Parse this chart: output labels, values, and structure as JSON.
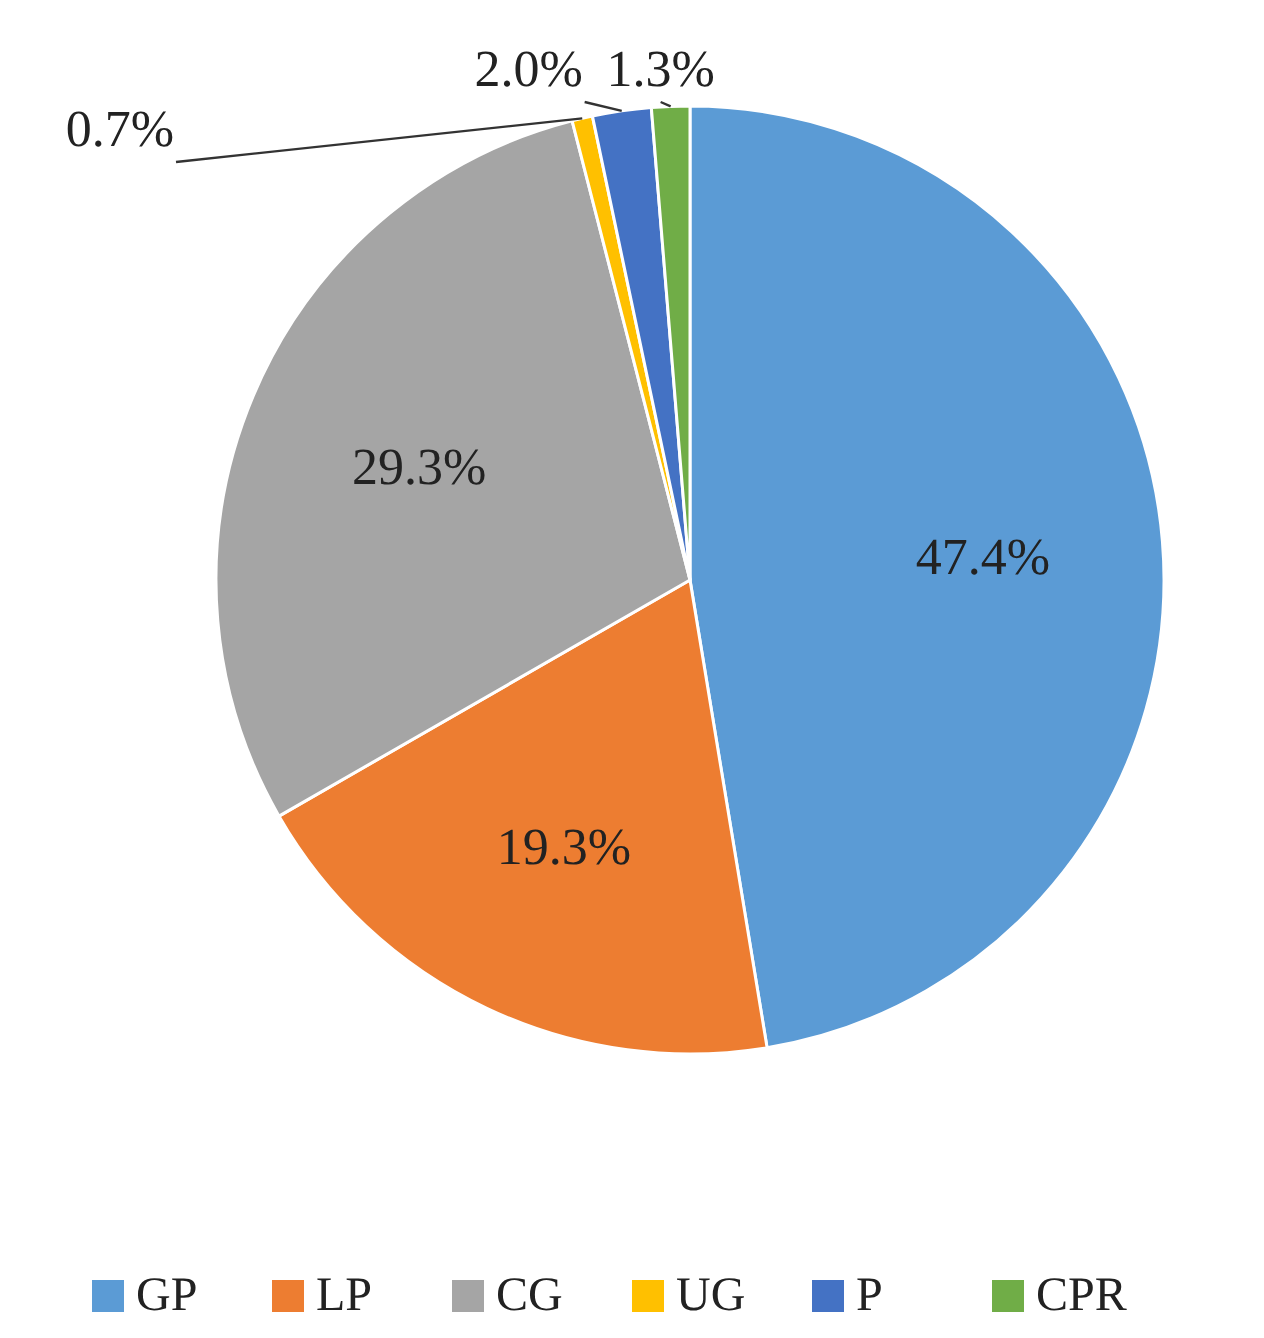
{
  "chart_data": {
    "type": "pie",
    "categories": [
      "GP",
      "LP",
      "CG",
      "UG",
      "P",
      "CPR"
    ],
    "values": [
      47.4,
      19.3,
      29.3,
      0.7,
      2.0,
      1.3
    ],
    "colors": [
      "#5b9bd5",
      "#ed7d31",
      "#a5a5a5",
      "#ffc000",
      "#4472c4",
      "#70ad47"
    ],
    "value_labels": [
      "47.4%",
      "19.3%",
      "29.3%",
      "0.7%",
      "2.0%",
      "1.3%"
    ],
    "legend": "bottom"
  }
}
